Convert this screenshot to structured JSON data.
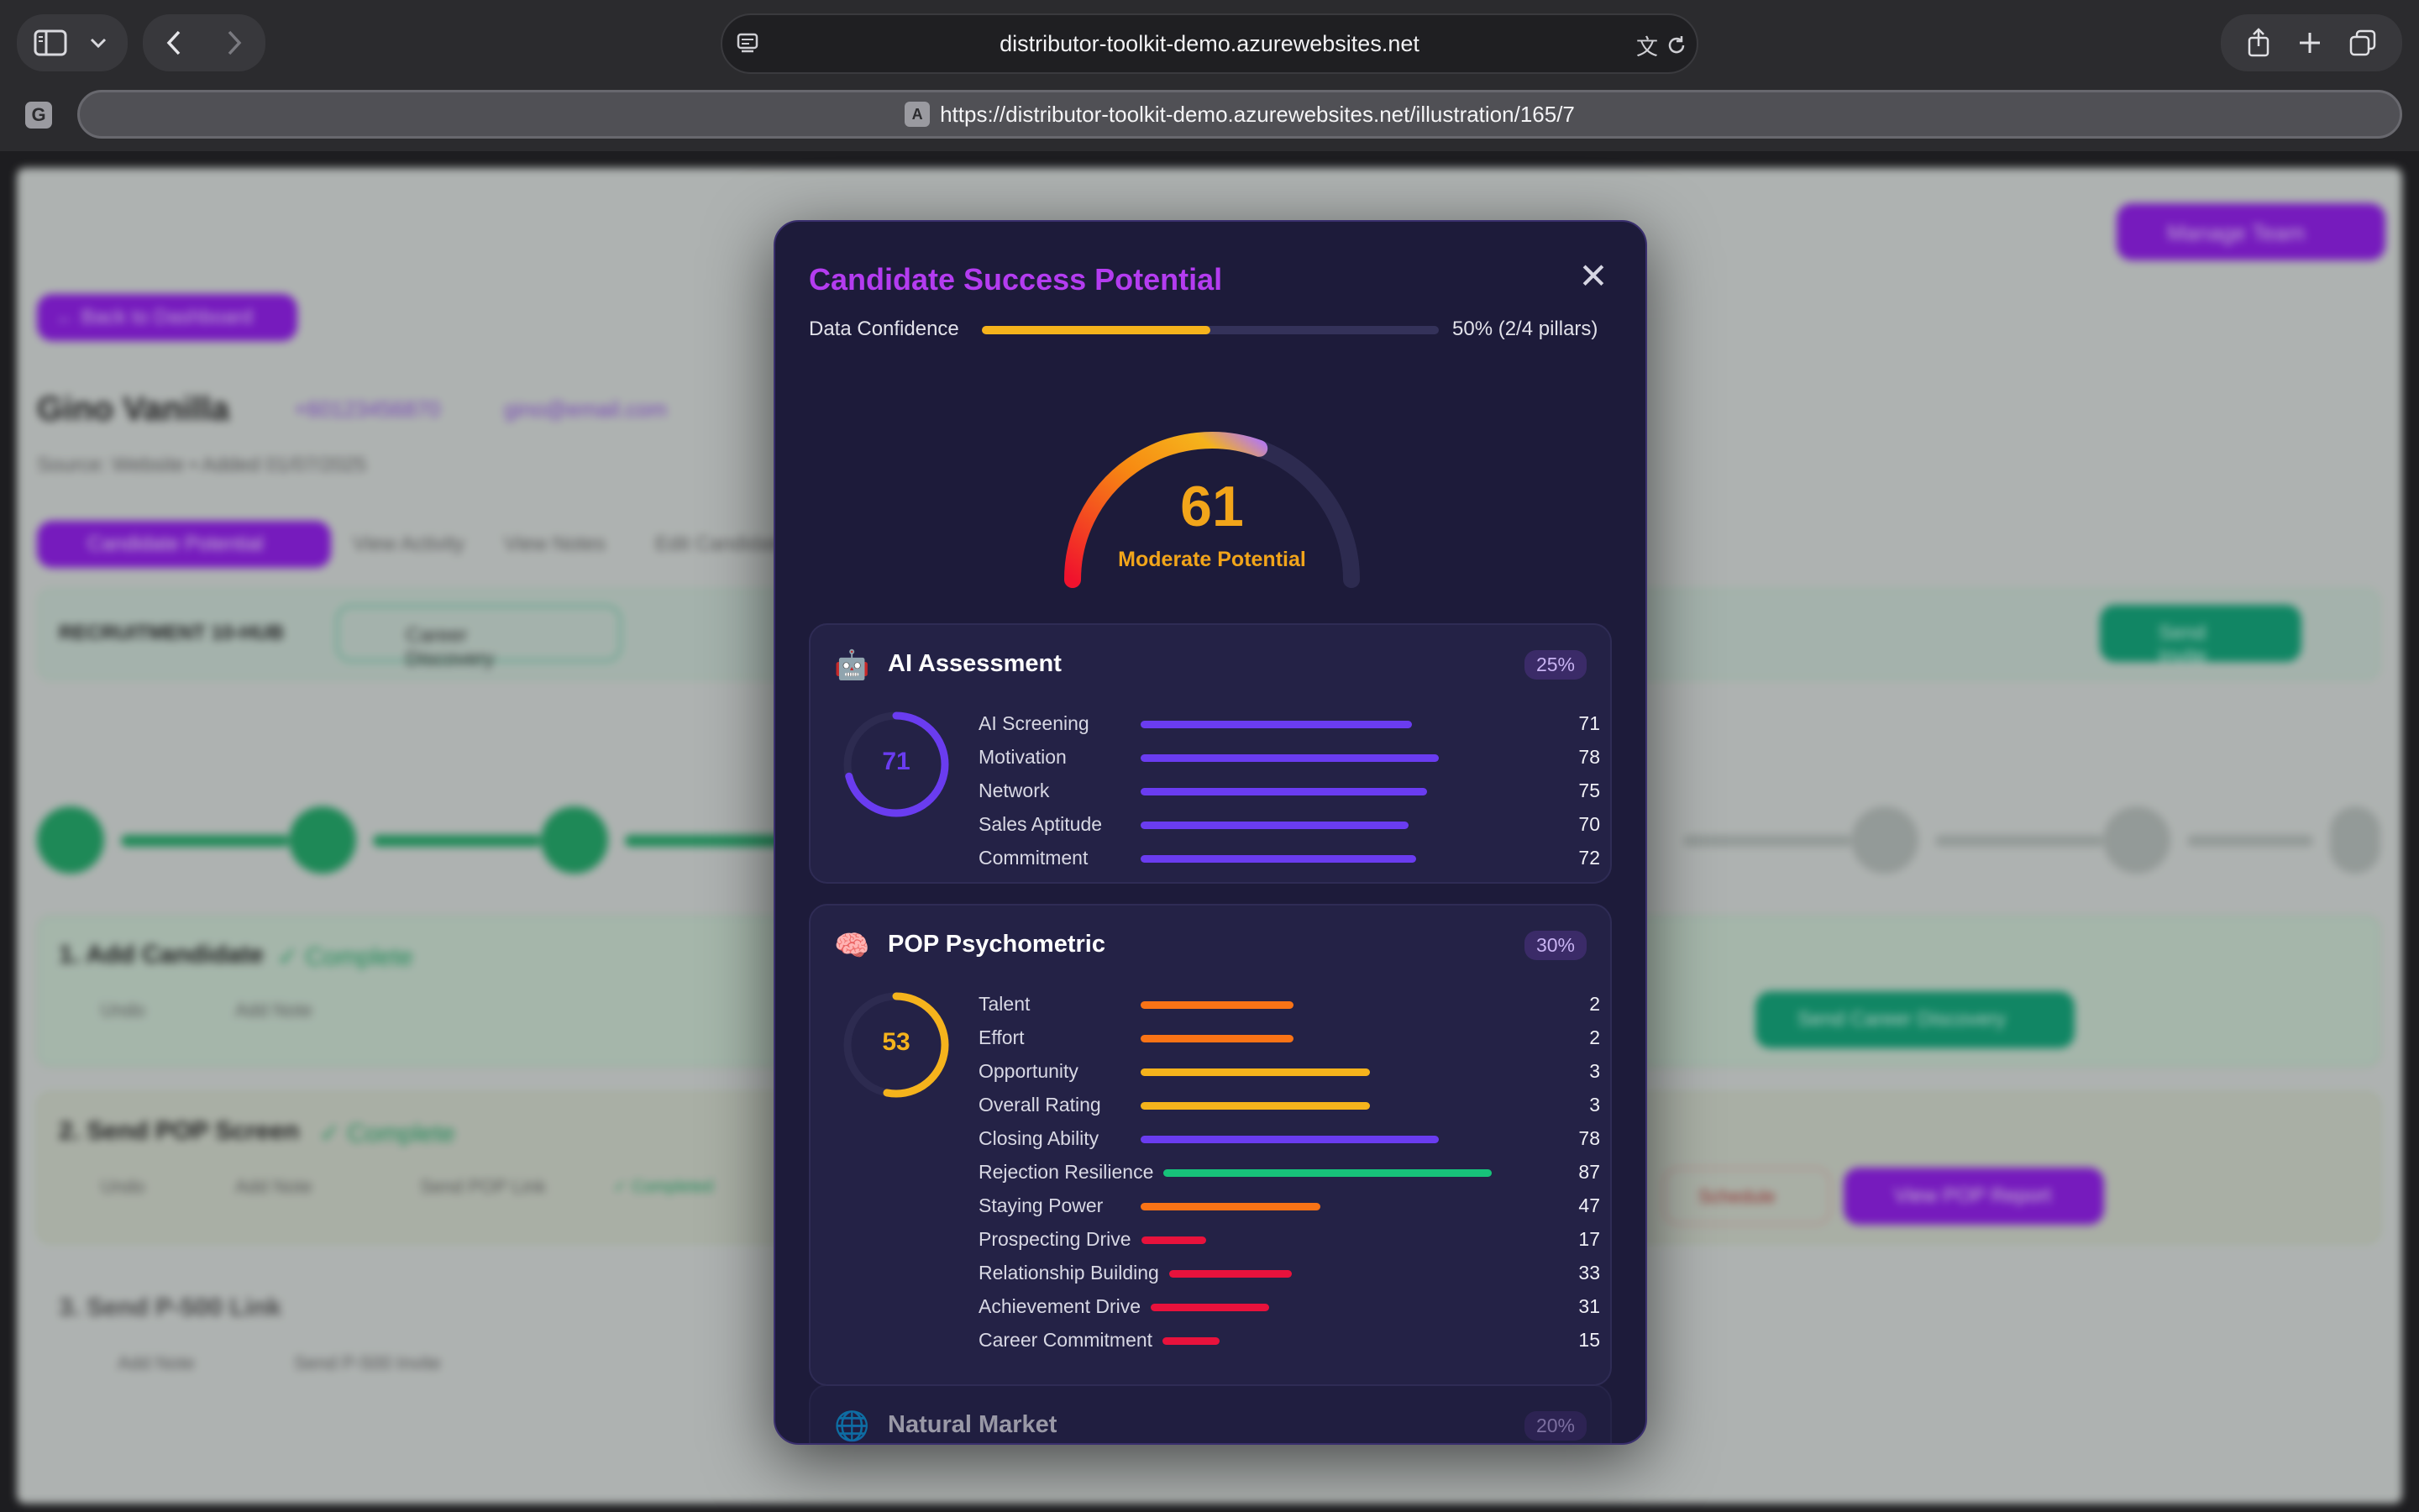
{
  "browser": {
    "domain": "distributor-toolkit-demo.azurewebsites.net",
    "url": "https://distributor-toolkit-demo.azurewebsites.net/illustration/165/7",
    "profile_badge": "G",
    "url_badge": "A"
  },
  "modal": {
    "title": "Candidate Success Potential",
    "data_confidence_label": "Data Confidence",
    "data_confidence_value": "50% (2/4 pillars)",
    "data_confidence_fraction": 0.5,
    "score": "61",
    "score_fraction": 0.61,
    "potential_label": "Moderate Potential",
    "pillars": [
      {
        "icon": "🤖",
        "title": "AI Assessment",
        "weight": "25%",
        "score": "71",
        "score_color": "#6a3cf0",
        "metrics": [
          {
            "label": "AI Screening",
            "value": "71",
            "fill": 0.71,
            "color": "#6a3cf0"
          },
          {
            "label": "Motivation",
            "value": "78",
            "fill": 0.78,
            "color": "#6a3cf0"
          },
          {
            "label": "Network",
            "value": "75",
            "fill": 0.75,
            "color": "#6a3cf0"
          },
          {
            "label": "Sales Aptitude",
            "value": "70",
            "fill": 0.7,
            "color": "#6a3cf0"
          },
          {
            "label": "Commitment",
            "value": "72",
            "fill": 0.72,
            "color": "#6a3cf0"
          }
        ]
      },
      {
        "icon": "🧠",
        "title": "POP Psychometric",
        "weight": "30%",
        "score": "53",
        "score_color": "#f5b31c",
        "metrics": [
          {
            "label": "Talent",
            "value": "2",
            "fill": 0.4,
            "color": "#f97316"
          },
          {
            "label": "Effort",
            "value": "2",
            "fill": 0.4,
            "color": "#f97316"
          },
          {
            "label": "Opportunity",
            "value": "3",
            "fill": 0.6,
            "color": "#f5b31c"
          },
          {
            "label": "Overall Rating",
            "value": "3",
            "fill": 0.6,
            "color": "#f5b31c"
          },
          {
            "label": "Closing Ability",
            "value": "78",
            "fill": 0.78,
            "color": "#6a3cf0"
          },
          {
            "label": "Rejection Resilience",
            "value": "87",
            "fill": 0.87,
            "color": "#17c27a"
          },
          {
            "label": "Staying Power",
            "value": "47",
            "fill": 0.47,
            "color": "#f97316"
          },
          {
            "label": "Prospecting Drive",
            "value": "17",
            "fill": 0.17,
            "color": "#e8123c"
          },
          {
            "label": "Relationship Building",
            "value": "33",
            "fill": 0.33,
            "color": "#e8123c"
          },
          {
            "label": "Achievement Drive",
            "value": "31",
            "fill": 0.31,
            "color": "#e8123c"
          },
          {
            "label": "Career Commitment",
            "value": "15",
            "fill": 0.15,
            "color": "#e8123c"
          }
        ]
      },
      {
        "icon": "🌐",
        "title": "Natural Market",
        "weight": "20%"
      }
    ]
  },
  "background": {
    "back_button": "← Back to Dashboard",
    "candidate_name": "Gino Vanilla",
    "phone": "+60123456870",
    "email": "gino@email.com",
    "source": "Source: Website • Added 01/07/2025",
    "tabs": [
      "Candidate Potential",
      "View Activity",
      "View Notes",
      "Edit Candidate"
    ],
    "hub_label": "RECRUITMENT 10-HUB",
    "career_discovery": "Career Discovery",
    "step1": "1. Add Candidate",
    "step2": "2. Send POP Screen",
    "step3": "3. Send P-500 Link",
    "complete": "✓ Complete",
    "manage_team": "Manage Team",
    "send_career_discovery": "Send Career Discovery",
    "view_pop_report": "View POP Report",
    "schedule": "Schedule",
    "send_invite": "Send Invite",
    "undo": "Undo",
    "add_note": "Add Note",
    "send_pop_link": "Send POP Link",
    "send_p500_invite": "Send P-500 Invite",
    "completed": "✓ Completed"
  }
}
